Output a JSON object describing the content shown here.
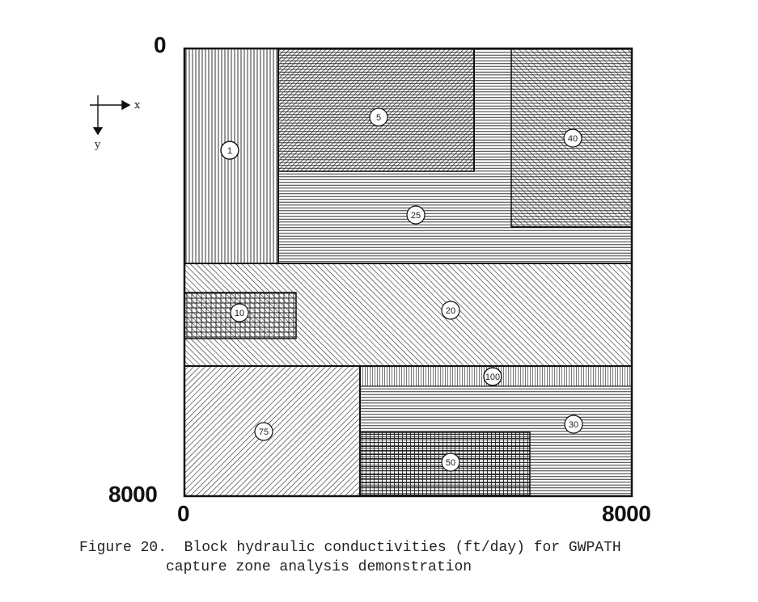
{
  "axes": {
    "origin_top_label": "0",
    "y_bottom_label": "8000",
    "x_left_label": "0",
    "x_right_label": "8000",
    "x_letter": "x",
    "y_letter": "y"
  },
  "zones": [
    {
      "id": "zone-1",
      "value": "1",
      "pattern": "vertical"
    },
    {
      "id": "zone-5",
      "value": "5",
      "pattern": "diag-dense"
    },
    {
      "id": "zone-25",
      "value": "25",
      "pattern": "horizontal"
    },
    {
      "id": "zone-40",
      "value": "40",
      "pattern": "diag-fwd"
    },
    {
      "id": "zone-20",
      "value": "20",
      "pattern": "diag-fwd"
    },
    {
      "id": "zone-10",
      "value": "10",
      "pattern": "grid"
    },
    {
      "id": "zone-75",
      "value": "75",
      "pattern": "diag-back"
    },
    {
      "id": "zone-100",
      "value": "100",
      "pattern": "vertical-fine"
    },
    {
      "id": "zone-30",
      "value": "30",
      "pattern": "horizontal"
    },
    {
      "id": "zone-50",
      "value": "50",
      "pattern": "grid-fine"
    }
  ],
  "caption": {
    "line1": "Figure 20.  Block hydraulic conductivities (ft/day) for GWPATH",
    "line2": "capture zone analysis demonstration"
  }
}
